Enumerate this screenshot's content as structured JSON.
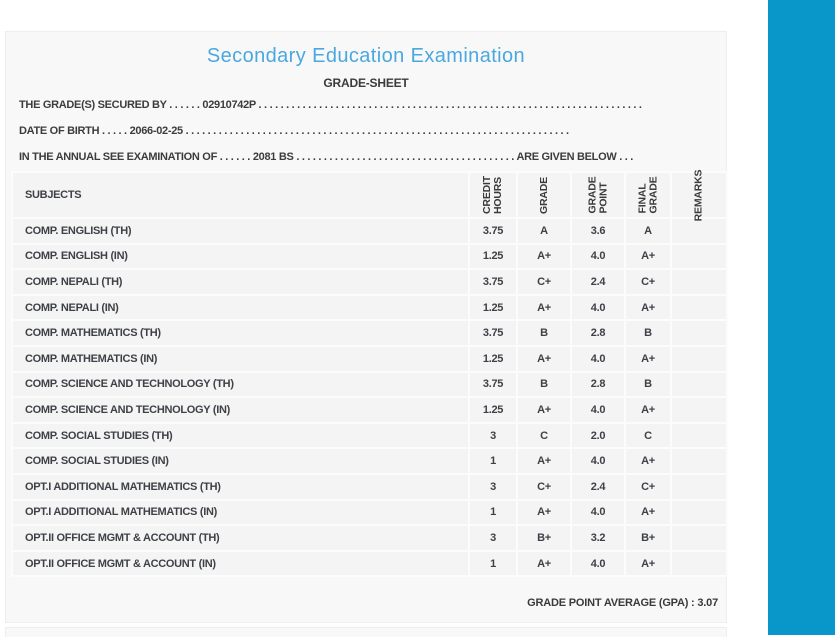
{
  "colors": {
    "accent_bar": "#0996c9",
    "title_text": "#4aa8e0"
  },
  "header": {
    "title": "Secondary Education Examination",
    "subtitle": "GRADE-SHEET"
  },
  "info": {
    "secured_by": {
      "label": "THE GRADE(S) SECURED BY",
      "dots_before": ". . . . . .",
      "value": "02910742P",
      "dots_after": ". . . . . . . . . . . . . . . . . . . . . . . . . . . . . . . . . . . . . . . . . . . . . . . . . . . . . . . . . . . . . . . . . . . . . ."
    },
    "date_of_birth": {
      "label": "DATE OF BIRTH",
      "dots_before": ". . . . .",
      "value": "2066-02-25",
      "dots_after": ". . . . . . . . . . . . . . . . . . . . . . . . . . . . . . . . . . . . . . . . . . . . . . . . . . . . . . . . . . . . . . . . . . . . . ."
    },
    "examination": {
      "label": "IN THE ANNUAL SEE EXAMINATION OF",
      "dots_before": ". . . . . .",
      "value": "2081 BS",
      "dots_mid": ". . . . . . . . . . . . . . . . . . . . . . . . . . . . . . . . . . . . . . . .",
      "suffix": "ARE GIVEN BELOW . . ."
    }
  },
  "table": {
    "headers": {
      "subjects": "SUBJECTS",
      "credit_hours": "CREDIT\nHOURS",
      "grade": "GRADE",
      "grade_point": "GRADE\nPOINT",
      "final_grade": "FINAL\nGRADE",
      "remarks": "REMARKS"
    },
    "rows": [
      {
        "subject": "COMP. ENGLISH (TH)",
        "credit_hours": "3.75",
        "grade": "A",
        "grade_point": "3.6",
        "final_grade": "A",
        "remarks": ""
      },
      {
        "subject": "COMP. ENGLISH (IN)",
        "credit_hours": "1.25",
        "grade": "A+",
        "grade_point": "4.0",
        "final_grade": "A+",
        "remarks": ""
      },
      {
        "subject": "COMP. NEPALI (TH)",
        "credit_hours": "3.75",
        "grade": "C+",
        "grade_point": "2.4",
        "final_grade": "C+",
        "remarks": ""
      },
      {
        "subject": "COMP. NEPALI (IN)",
        "credit_hours": "1.25",
        "grade": "A+",
        "grade_point": "4.0",
        "final_grade": "A+",
        "remarks": ""
      },
      {
        "subject": "COMP. MATHEMATICS (TH)",
        "credit_hours": "3.75",
        "grade": "B",
        "grade_point": "2.8",
        "final_grade": "B",
        "remarks": ""
      },
      {
        "subject": "COMP. MATHEMATICS (IN)",
        "credit_hours": "1.25",
        "grade": "A+",
        "grade_point": "4.0",
        "final_grade": "A+",
        "remarks": ""
      },
      {
        "subject": "COMP. SCIENCE AND TECHNOLOGY (TH)",
        "credit_hours": "3.75",
        "grade": "B",
        "grade_point": "2.8",
        "final_grade": "B",
        "remarks": ""
      },
      {
        "subject": "COMP. SCIENCE AND TECHNOLOGY (IN)",
        "credit_hours": "1.25",
        "grade": "A+",
        "grade_point": "4.0",
        "final_grade": "A+",
        "remarks": ""
      },
      {
        "subject": "COMP. SOCIAL STUDIES (TH)",
        "credit_hours": "3",
        "grade": "C",
        "grade_point": "2.0",
        "final_grade": "C",
        "remarks": ""
      },
      {
        "subject": "COMP. SOCIAL STUDIES (IN)",
        "credit_hours": "1",
        "grade": "A+",
        "grade_point": "4.0",
        "final_grade": "A+",
        "remarks": ""
      },
      {
        "subject": "OPT.I ADDITIONAL MATHEMATICS (TH)",
        "credit_hours": "3",
        "grade": "C+",
        "grade_point": "2.4",
        "final_grade": "C+",
        "remarks": ""
      },
      {
        "subject": "OPT.I ADDITIONAL MATHEMATICS (IN)",
        "credit_hours": "1",
        "grade": "A+",
        "grade_point": "4.0",
        "final_grade": "A+",
        "remarks": ""
      },
      {
        "subject": "OPT.II OFFICE MGMT & ACCOUNT (TH)",
        "credit_hours": "3",
        "grade": "B+",
        "grade_point": "3.2",
        "final_grade": "B+",
        "remarks": ""
      },
      {
        "subject": "OPT.II OFFICE MGMT & ACCOUNT (IN)",
        "credit_hours": "1",
        "grade": "A+",
        "grade_point": "4.0",
        "final_grade": "A+",
        "remarks": ""
      }
    ]
  },
  "footer": {
    "gpa_label": "GRADE POINT AVERAGE (GPA) :",
    "gpa_value": "3.07"
  }
}
